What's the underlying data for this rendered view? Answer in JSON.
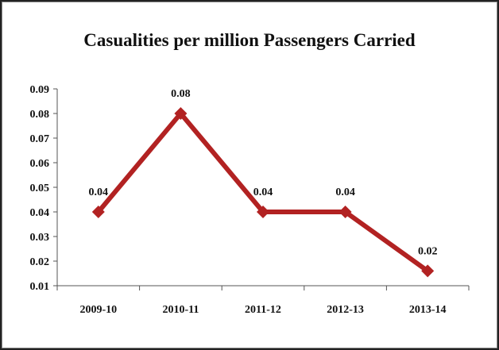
{
  "chart_data": {
    "type": "line",
    "title": "Casualities per million Passengers Carried",
    "xlabel": "",
    "ylabel": "",
    "categories": [
      "2009-10",
      "2010-11",
      "2011-12",
      "2012-13",
      "2013-14"
    ],
    "series": [
      {
        "values": [
          0.04,
          0.08,
          0.04,
          0.04,
          0.016
        ],
        "labels": [
          "0.04",
          "0.08",
          "0.04",
          "0.04",
          "0.02"
        ]
      }
    ],
    "ylim": [
      0.01,
      0.09
    ],
    "yticks": [
      "0.01",
      "0.02",
      "0.03",
      "0.04",
      "0.05",
      "0.06",
      "0.07",
      "0.08",
      "0.09"
    ],
    "grid": false,
    "legend": "none",
    "colors": {
      "line": "#b22222",
      "axis": "#555555"
    }
  }
}
